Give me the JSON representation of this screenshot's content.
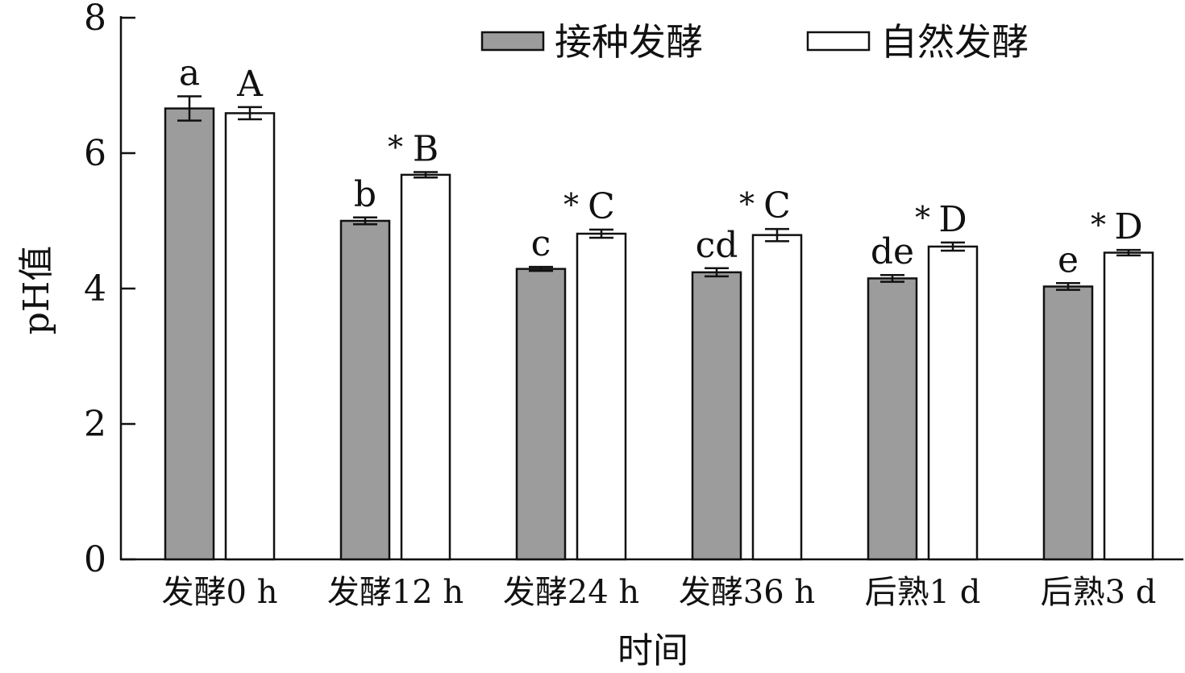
{
  "chart_data": {
    "type": "bar",
    "title": "",
    "xlabel": "时间",
    "ylabel": "pH值",
    "ylim": [
      0,
      8
    ],
    "yticks": [
      "0",
      "2",
      "4",
      "6",
      "8"
    ],
    "grid": false,
    "legend_position": "top-right",
    "categories": [
      "发酵0 h",
      "发酵12 h",
      "发酵24 h",
      "发酵36 h",
      "后熟1 d",
      "后熟3 d"
    ],
    "series": [
      {
        "name": "接种发酵",
        "color": "#9c9c9c",
        "values": [
          6.66,
          5.0,
          4.29,
          4.24,
          4.15,
          4.03
        ],
        "errors": [
          0.18,
          0.05,
          0.03,
          0.06,
          0.05,
          0.05
        ],
        "letters": [
          "a",
          "b",
          "c",
          "cd",
          "de",
          "e"
        ]
      },
      {
        "name": "自然发酵",
        "color": "#ffffff",
        "values": [
          6.59,
          5.68,
          4.81,
          4.79,
          4.62,
          4.53
        ],
        "errors": [
          0.09,
          0.04,
          0.06,
          0.09,
          0.06,
          0.04
        ],
        "letters": [
          "A",
          "B",
          "C",
          "C",
          "D",
          "D"
        ]
      }
    ],
    "significance_marks": [
      "",
      "*",
      "*",
      "*",
      "*",
      "*"
    ]
  }
}
